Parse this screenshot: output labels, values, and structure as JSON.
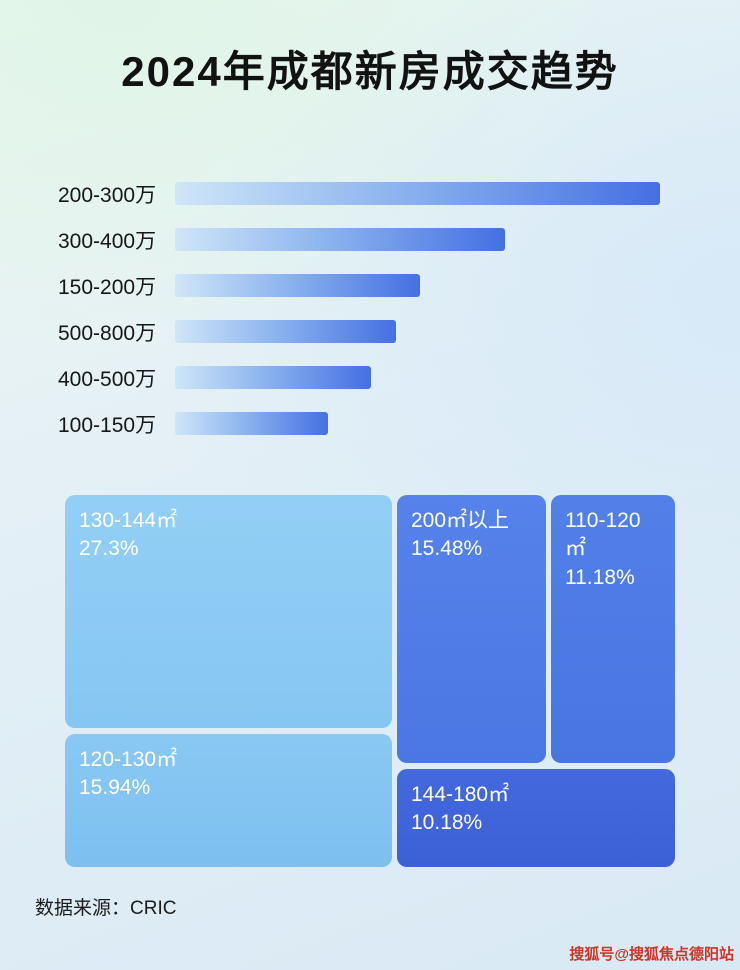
{
  "title": "2024年成都新房成交趋势",
  "source": "数据来源：CRIC",
  "watermark": "搜狐号@搜狐焦点德阳站",
  "colors": {
    "bar_gradient_start": "#cfe6f8",
    "bar_gradient_end": "#4470e2",
    "treemap_light_blue": "#86c6f2",
    "treemap_medium_blue": "#4a77e3",
    "treemap_dark_blue": "#3c60d6",
    "watermark_red": "#cf3527"
  },
  "chart_data": [
    {
      "type": "bar",
      "orientation": "horizontal",
      "title": "2024年成都新房成交趋势",
      "categories": [
        "200-300万",
        "300-400万",
        "150-200万",
        "500-800万",
        "400-500万",
        "100-150万"
      ],
      "values_relative_pct": [
        100,
        68,
        50.5,
        45.5,
        40.5,
        31.5
      ],
      "value_labels_shown": false,
      "xlabel": "",
      "ylabel": "",
      "grid": false,
      "legend": false
    },
    {
      "type": "treemap",
      "blocks": [
        {
          "label": "130-144㎡",
          "percent": "27.3%",
          "value": 27.3
        },
        {
          "label": "120-130㎡",
          "percent": "15.94%",
          "value": 15.94
        },
        {
          "label": "200㎡以上",
          "percent": "15.48%",
          "value": 15.48
        },
        {
          "label": "110-120㎡",
          "percent": "11.18%",
          "value": 11.18
        },
        {
          "label": "144-180㎡",
          "percent": "10.18%",
          "value": 10.18
        }
      ]
    }
  ]
}
